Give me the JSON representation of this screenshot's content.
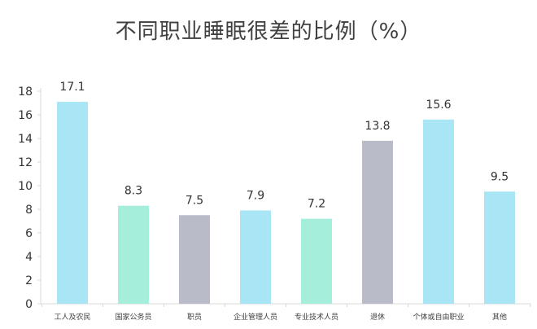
{
  "chart_data": {
    "type": "bar",
    "title": "不同职业睡眠很差的比例（%）",
    "categories": [
      "工人及农民",
      "国家公务员",
      "职员",
      "企业管理人员",
      "专业技术人员",
      "退休",
      "个体或自由职业",
      "其他"
    ],
    "values": [
      17.1,
      8.3,
      7.5,
      7.9,
      7.2,
      13.8,
      15.6,
      9.5
    ],
    "value_labels": [
      "17.1",
      "8.3",
      "7.5",
      "7.9",
      "7.2",
      "13.8",
      "15.6",
      "9.5"
    ],
    "bar_colors": [
      "#a8e6f6",
      "#a6eedc",
      "#b9bcc8",
      "#a8e6f6",
      "#a6eedc",
      "#b9bcc8",
      "#a8e6f6",
      "#a8e6f6"
    ],
    "ylim": [
      0,
      18
    ],
    "yticks": [
      0,
      2,
      4,
      6,
      8,
      10,
      12,
      14,
      16,
      18
    ],
    "ytick_labels": [
      "0",
      "2",
      "4",
      "6",
      "8",
      "10",
      "12",
      "14",
      "16",
      "18"
    ],
    "grid": false,
    "axis_color": "#d9d9d9"
  }
}
